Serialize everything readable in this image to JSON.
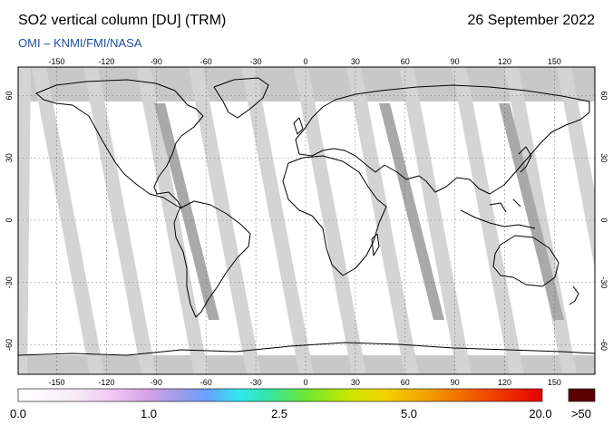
{
  "header": {
    "title": "SO2 vertical column [DU] (TRM)",
    "date": "26 September 2022",
    "subtitle": "OMI  –  KNMI/FMI/NASA"
  },
  "map": {
    "lon_ticks": [
      "-150",
      "-120",
      "-90",
      "-60",
      "-30",
      "0",
      "30",
      "60",
      "90",
      "120",
      "150"
    ],
    "lat_ticks": [
      "60",
      "30",
      "0",
      "-30",
      "-60"
    ],
    "colors": {
      "ocean": "#ffffff",
      "swath_gap": "#d4d4d4",
      "dark_swath": "#a9a9a9",
      "polar": "#c8c8c8",
      "coast": "#000000",
      "grid": "#666666"
    }
  },
  "colorbar": {
    "labels": [
      "0.0",
      "1.0",
      "2.5",
      "5.0",
      "20.0",
      ">50"
    ],
    "overflow_color": "#5a0000"
  }
}
